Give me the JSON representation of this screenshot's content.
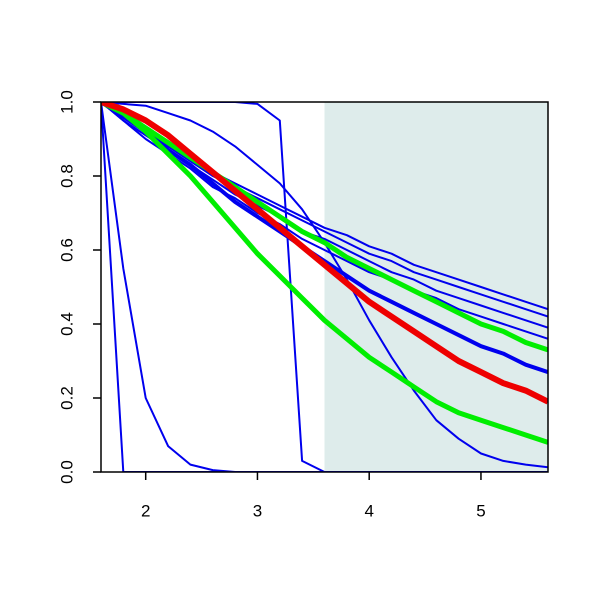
{
  "chart_data": {
    "type": "line",
    "x": [
      1.6,
      1.8,
      2.0,
      2.2,
      2.4,
      2.6,
      2.8,
      3.0,
      3.2,
      3.4,
      3.6,
      3.8,
      4.0,
      4.2,
      4.4,
      4.6,
      4.8,
      5.0,
      5.2,
      5.4,
      5.6
    ],
    "xlim": [
      1.6,
      5.6
    ],
    "ylim": [
      0,
      1
    ],
    "xticks": [
      2,
      3,
      4,
      5
    ],
    "yticks": [
      {
        "value": 0,
        "label": "0.0"
      },
      {
        "value": 0.2,
        "label": "0.2"
      },
      {
        "value": 0.4,
        "label": "0.4"
      },
      {
        "value": 0.6,
        "label": "0.6"
      },
      {
        "value": 0.8,
        "label": "0.8"
      },
      {
        "value": 1,
        "label": "1.0"
      }
    ],
    "shaded_xrange": [
      3.6,
      5.6
    ],
    "shade_color": "#deeceb",
    "series": [
      {
        "color": "#0000ee",
        "line_width": 2,
        "values": [
          1,
          0,
          0,
          0,
          0,
          0,
          0,
          0,
          0,
          0,
          0,
          0,
          0,
          0,
          0,
          0,
          0,
          0,
          0,
          0,
          0
        ]
      },
      {
        "color": "#0000ee",
        "line_width": 2,
        "values": [
          1,
          0.55,
          0.2,
          0.07,
          0.02,
          0.005,
          0,
          0,
          0,
          0,
          0,
          0,
          0,
          0,
          0,
          0,
          0,
          0,
          0,
          0,
          0
        ]
      },
      {
        "color": "#0000ee",
        "line_width": 2,
        "values": [
          1,
          1,
          1,
          1,
          1,
          1,
          1,
          0.995,
          0.95,
          0.03,
          0,
          0,
          0,
          0,
          0,
          0,
          0,
          0,
          0,
          0,
          0
        ]
      },
      {
        "color": "#0000ee",
        "line_width": 2,
        "values": [
          1,
          0.995,
          0.99,
          0.97,
          0.95,
          0.92,
          0.88,
          0.83,
          0.78,
          0.71,
          0.62,
          0.52,
          0.41,
          0.31,
          0.22,
          0.14,
          0.09,
          0.05,
          0.03,
          0.02,
          0.013
        ]
      },
      {
        "color": "#0000ee",
        "line_width": 2,
        "values": [
          1,
          0.96,
          0.92,
          0.88,
          0.85,
          0.81,
          0.78,
          0.75,
          0.72,
          0.69,
          0.66,
          0.64,
          0.61,
          0.59,
          0.56,
          0.54,
          0.52,
          0.5,
          0.48,
          0.46,
          0.44
        ]
      },
      {
        "color": "#0000ee",
        "line_width": 2,
        "values": [
          1,
          0.96,
          0.92,
          0.88,
          0.84,
          0.8,
          0.77,
          0.74,
          0.71,
          0.68,
          0.65,
          0.62,
          0.59,
          0.57,
          0.54,
          0.52,
          0.5,
          0.48,
          0.46,
          0.44,
          0.42
        ]
      },
      {
        "color": "#0000ee",
        "line_width": 2,
        "values": [
          1,
          0.95,
          0.91,
          0.87,
          0.83,
          0.79,
          0.75,
          0.72,
          0.69,
          0.65,
          0.63,
          0.6,
          0.57,
          0.54,
          0.52,
          0.49,
          0.47,
          0.45,
          0.43,
          0.41,
          0.39
        ]
      },
      {
        "color": "#0000ee",
        "line_width": 2,
        "values": [
          1,
          0.95,
          0.9,
          0.86,
          0.82,
          0.77,
          0.74,
          0.7,
          0.67,
          0.63,
          0.6,
          0.57,
          0.54,
          0.52,
          0.49,
          0.47,
          0.44,
          0.42,
          0.4,
          0.38,
          0.36
        ]
      },
      {
        "color": "#0000ee",
        "line_width": 4,
        "values": [
          1,
          0.96,
          0.92,
          0.87,
          0.83,
          0.78,
          0.73,
          0.69,
          0.65,
          0.61,
          0.57,
          0.53,
          0.49,
          0.46,
          0.43,
          0.4,
          0.37,
          0.34,
          0.32,
          0.29,
          0.27
        ]
      },
      {
        "color": "#00ee00",
        "line_width": 5,
        "values": [
          1,
          0.97,
          0.93,
          0.89,
          0.85,
          0.81,
          0.77,
          0.73,
          0.69,
          0.65,
          0.62,
          0.58,
          0.55,
          0.52,
          0.49,
          0.46,
          0.43,
          0.4,
          0.38,
          0.35,
          0.33
        ]
      },
      {
        "color": "#00ee00",
        "line_width": 5,
        "values": [
          1,
          0.97,
          0.92,
          0.86,
          0.8,
          0.73,
          0.66,
          0.59,
          0.53,
          0.47,
          0.41,
          0.36,
          0.31,
          0.27,
          0.23,
          0.19,
          0.16,
          0.14,
          0.12,
          0.1,
          0.08
        ]
      },
      {
        "color": "#ee0000",
        "line_width": 6,
        "values": [
          1,
          0.98,
          0.95,
          0.91,
          0.86,
          0.81,
          0.76,
          0.71,
          0.66,
          0.61,
          0.56,
          0.51,
          0.46,
          0.42,
          0.38,
          0.34,
          0.3,
          0.27,
          0.24,
          0.22,
          0.19
        ]
      }
    ]
  }
}
